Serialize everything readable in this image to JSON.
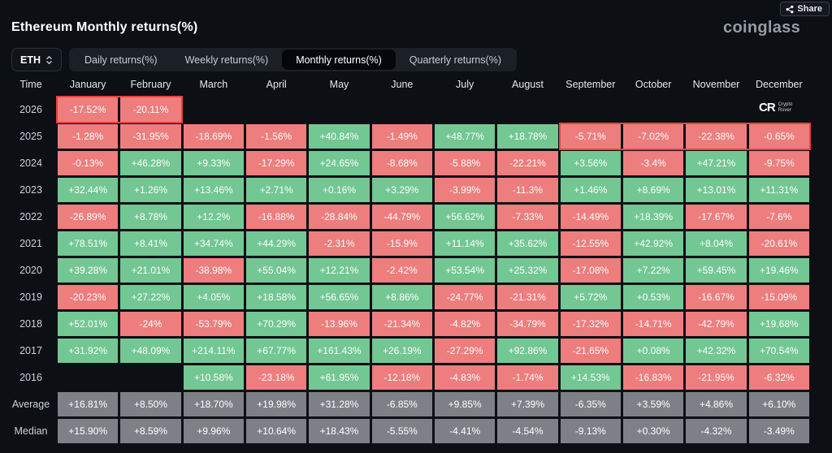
{
  "header": {
    "title": "Ethereum Monthly returns(%)",
    "brand": "coinglass",
    "share_label": "Share"
  },
  "toolbar": {
    "symbol": "ETH",
    "tabs": [
      {
        "label": "Daily returns(%)",
        "active": false
      },
      {
        "label": "Weekly returns(%)",
        "active": false
      },
      {
        "label": "Monthly returns(%)",
        "active": true
      },
      {
        "label": "Quarterly returns(%)",
        "active": false
      }
    ]
  },
  "watermark": {
    "mark": "CR",
    "name_line1": "Crypto",
    "name_line2": "Rover"
  },
  "colors": {
    "positive": "#72c793",
    "negative": "#ee7d7d",
    "neutral": "#7d8086",
    "highlight": "#e5433f",
    "brand_text": "#959ca6"
  },
  "table": {
    "columns": [
      "Time",
      "January",
      "February",
      "March",
      "April",
      "May",
      "June",
      "July",
      "August",
      "September",
      "October",
      "November",
      "December"
    ],
    "rows": [
      {
        "label": "2026",
        "summary": false,
        "highlight": [
          0,
          1
        ],
        "values": [
          "-17.52%",
          "-20.11%",
          "",
          "",
          "",
          "",
          "",
          "",
          "",
          "",
          "",
          ""
        ]
      },
      {
        "label": "2025",
        "summary": false,
        "highlight": [
          8,
          11
        ],
        "values": [
          "-1.28%",
          "-31.95%",
          "-18.69%",
          "-1.56%",
          "+40.84%",
          "-1.49%",
          "+48.77%",
          "+18.78%",
          "-5.71%",
          "-7.02%",
          "-22.38%",
          "-0.65%"
        ]
      },
      {
        "label": "2024",
        "summary": false,
        "values": [
          "-0.13%",
          "+46.28%",
          "+9.33%",
          "-17.29%",
          "+24.65%",
          "-8.68%",
          "-5.88%",
          "-22.21%",
          "+3.56%",
          "-3.4%",
          "+47.21%",
          "-9.75%"
        ]
      },
      {
        "label": "2023",
        "summary": false,
        "values": [
          "+32.44%",
          "+1.26%",
          "+13.46%",
          "+2.71%",
          "+0.16%",
          "+3.29%",
          "-3.99%",
          "-11.3%",
          "+1.46%",
          "+8.69%",
          "+13.01%",
          "+11.31%"
        ]
      },
      {
        "label": "2022",
        "summary": false,
        "values": [
          "-26.89%",
          "+8.78%",
          "+12.2%",
          "-16.88%",
          "-28.84%",
          "-44.79%",
          "+56.62%",
          "-7.33%",
          "-14.49%",
          "+18.39%",
          "-17.67%",
          "-7.6%"
        ]
      },
      {
        "label": "2021",
        "summary": false,
        "values": [
          "+78.51%",
          "+8.41%",
          "+34.74%",
          "+44.29%",
          "-2.31%",
          "-15.9%",
          "+11.14%",
          "+35.62%",
          "-12.55%",
          "+42.92%",
          "+8.04%",
          "-20.61%"
        ]
      },
      {
        "label": "2020",
        "summary": false,
        "values": [
          "+39.28%",
          "+21.01%",
          "-38.98%",
          "+55.04%",
          "+12.21%",
          "-2.42%",
          "+53.54%",
          "+25.32%",
          "-17.08%",
          "+7.22%",
          "+59.45%",
          "+19.46%"
        ]
      },
      {
        "label": "2019",
        "summary": false,
        "values": [
          "-20.23%",
          "+27.22%",
          "+4.05%",
          "+18.58%",
          "+56.65%",
          "+8.86%",
          "-24.77%",
          "-21.31%",
          "+5.72%",
          "+0.53%",
          "-16.67%",
          "-15.09%"
        ]
      },
      {
        "label": "2018",
        "summary": false,
        "values": [
          "+52.01%",
          "-24%",
          "-53.79%",
          "+70.29%",
          "-13.96%",
          "-21.34%",
          "-4.82%",
          "-34.79%",
          "-17.32%",
          "-14.71%",
          "-42.79%",
          "+19.68%"
        ]
      },
      {
        "label": "2017",
        "summary": false,
        "values": [
          "+31.92%",
          "+48.09%",
          "+214.11%",
          "+67.77%",
          "+161.43%",
          "+26.19%",
          "-27.29%",
          "+92.86%",
          "-21.65%",
          "+0.08%",
          "+42.32%",
          "+70.54%"
        ]
      },
      {
        "label": "2016",
        "summary": false,
        "values": [
          "",
          "",
          "+10.58%",
          "-23.18%",
          "+61.95%",
          "-12.18%",
          "-4.83%",
          "-1.74%",
          "+14.53%",
          "-16.83%",
          "-21.95%",
          "-6.32%"
        ]
      },
      {
        "label": "Average",
        "summary": true,
        "values": [
          "+16.81%",
          "+8.50%",
          "+18.70%",
          "+19.98%",
          "+31.28%",
          "-6.85%",
          "+9.85%",
          "+7.39%",
          "-6.35%",
          "+3.59%",
          "+4.86%",
          "+6.10%"
        ]
      },
      {
        "label": "Median",
        "summary": true,
        "values": [
          "+15.90%",
          "+8.59%",
          "+9.96%",
          "+10.64%",
          "+18.43%",
          "-5.55%",
          "-4.41%",
          "-4.54%",
          "-9.13%",
          "+0.30%",
          "-4.32%",
          "-3.49%"
        ]
      }
    ]
  }
}
